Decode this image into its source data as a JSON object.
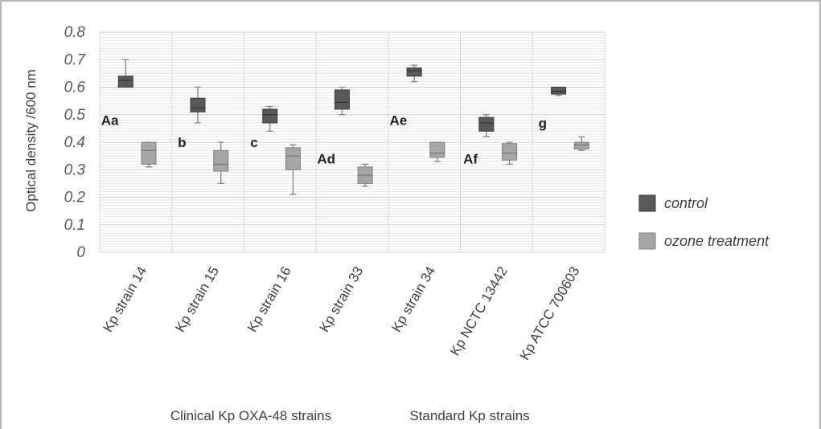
{
  "chart_data": {
    "type": "box",
    "ylabel": "Optical density /600 nm",
    "ylim": [
      0,
      0.8
    ],
    "yticks": [
      "0",
      "0.1",
      "0.2",
      "0.3",
      "0.4",
      "0.5",
      "0.6",
      "0.7",
      "0.8"
    ],
    "categories": [
      "Kp strain 14",
      "Kp strain 15",
      "Kp strain 16",
      "Kp strain 33",
      "Kp strain 34",
      "Kp NCTC 13442",
      "Kp ATCC 700603"
    ],
    "group_labels": [
      "Clinical Kp OXA-48 strains",
      "Standard Kp strains"
    ],
    "annotations": [
      "Aa",
      "b",
      "c",
      "Ad",
      "Ae",
      "Af",
      "g"
    ],
    "legend_position": "right",
    "grid": true,
    "series": [
      {
        "name": "control",
        "color": "#595959",
        "boxes": [
          {
            "min": 0.6,
            "q1": 0.6,
            "median": 0.625,
            "q3": 0.64,
            "max": 0.7
          },
          {
            "min": 0.47,
            "q1": 0.51,
            "median": 0.525,
            "q3": 0.56,
            "max": 0.6
          },
          {
            "min": 0.44,
            "q1": 0.47,
            "median": 0.5,
            "q3": 0.52,
            "max": 0.53
          },
          {
            "min": 0.5,
            "q1": 0.52,
            "median": 0.545,
            "q3": 0.59,
            "max": 0.6
          },
          {
            "min": 0.62,
            "q1": 0.64,
            "median": 0.66,
            "q3": 0.67,
            "max": 0.68
          },
          {
            "min": 0.42,
            "q1": 0.44,
            "median": 0.47,
            "q3": 0.49,
            "max": 0.5
          },
          {
            "min": 0.57,
            "q1": 0.575,
            "median": 0.585,
            "q3": 0.6,
            "max": 0.6
          }
        ]
      },
      {
        "name": "ozone treatment",
        "color": "#a6a6a6",
        "boxes": [
          {
            "min": 0.31,
            "q1": 0.32,
            "median": 0.37,
            "q3": 0.4,
            "max": 0.4
          },
          {
            "min": 0.25,
            "q1": 0.295,
            "median": 0.32,
            "q3": 0.37,
            "max": 0.4
          },
          {
            "min": 0.21,
            "q1": 0.3,
            "median": 0.35,
            "q3": 0.38,
            "max": 0.39
          },
          {
            "min": 0.24,
            "q1": 0.25,
            "median": 0.28,
            "q3": 0.31,
            "max": 0.32
          },
          {
            "min": 0.33,
            "q1": 0.345,
            "median": 0.36,
            "q3": 0.4,
            "max": 0.4
          },
          {
            "min": 0.32,
            "q1": 0.335,
            "median": 0.36,
            "q3": 0.395,
            "max": 0.4
          },
          {
            "min": 0.37,
            "q1": 0.375,
            "median": 0.39,
            "q3": 0.4,
            "max": 0.42
          }
        ]
      }
    ]
  }
}
